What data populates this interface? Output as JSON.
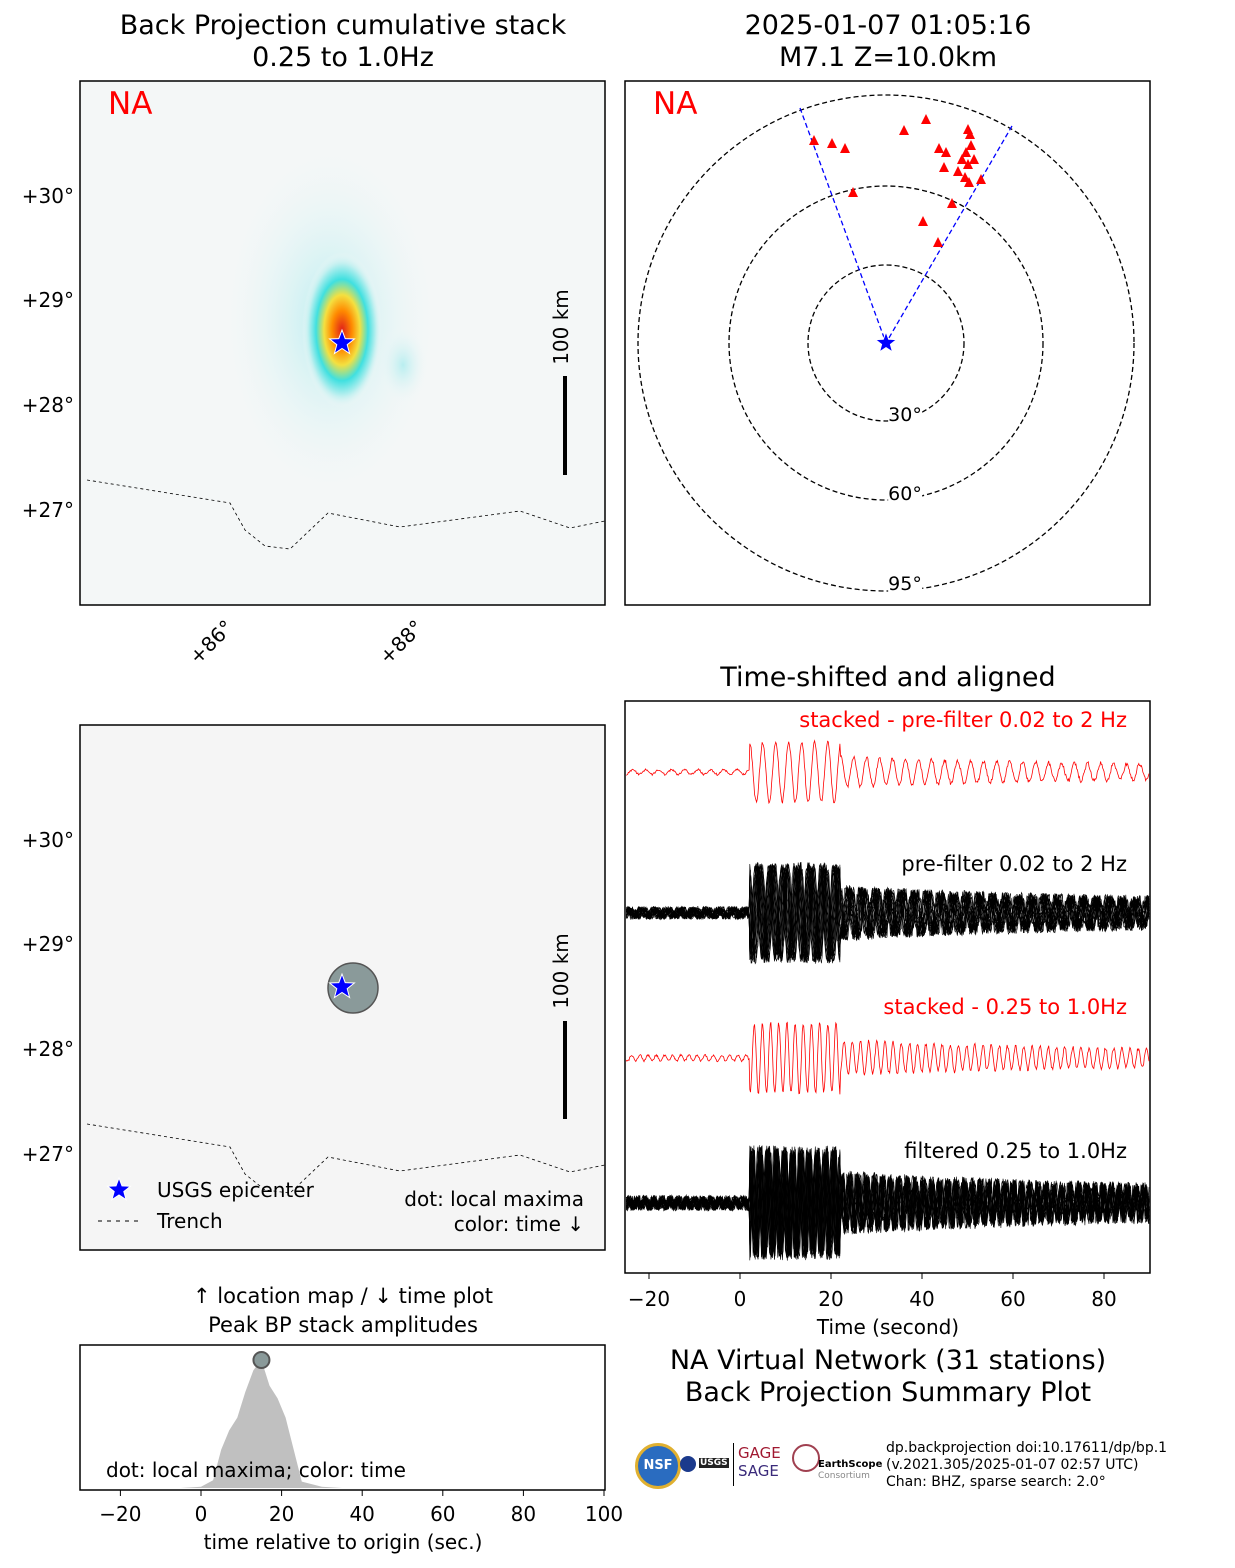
{
  "bp_map": {
    "title1": "Back Projection cumulative stack",
    "title2": "0.25 to 1.0Hz",
    "network": "NA",
    "lat_ticks": [
      "+30°",
      "+29°",
      "+28°",
      "+27°"
    ],
    "lon_ticks": [
      "+86°",
      "+88°"
    ],
    "scale": "100 km"
  },
  "event_map": {
    "title1": "2025-01-07 01:05:16",
    "title2": "M7.1 Z=10.0km",
    "network": "NA",
    "rings": [
      "30°",
      "60°",
      "95°"
    ]
  },
  "loc_map": {
    "lat_ticks": [
      "+30°",
      "+29°",
      "+28°",
      "+27°"
    ],
    "scale": "100 km",
    "legend_epicenter": "USGS epicenter",
    "legend_trench": "Trench",
    "note1": "dot: local maxima",
    "note2": "color: time ↓"
  },
  "amp_plot": {
    "title1": "↑ location map / ↓ time plot",
    "title2": "Peak BP stack amplitudes",
    "note": "dot: local maxima; color: time",
    "xlabel": "time relative to origin (sec.)",
    "xticks": [
      "−20",
      "0",
      "20",
      "40",
      "60",
      "80",
      "100"
    ]
  },
  "waveforms": {
    "title": "Time-shifted and aligned",
    "labels": [
      "stacked - pre-filter 0.02 to 2 Hz",
      "pre-filter 0.02 to 2 Hz",
      "stacked - 0.25 to 1.0Hz",
      "filtered 0.25 to 1.0Hz"
    ],
    "xticks": [
      "−20",
      "0",
      "20",
      "40",
      "60",
      "80"
    ],
    "xlabel": "Time (second)"
  },
  "summary": {
    "line1": "NA Virtual Network (31 stations)",
    "line2": "Back Projection Summary Plot"
  },
  "footer": {
    "l1": "dp.backprojection doi:10.17611/dp/bp.1",
    "l2": "(v.2021.305/2025-01-07 02:57 UTC)",
    "l3": "Chan: BHZ, sparse search: 2.0°",
    "logo_gage": "GAGE",
    "logo_sage": "SAGE",
    "logo_es": "EarthScope",
    "logo_cons": "Consortium",
    "logo_nsf": "NSF",
    "logo_usgs": "USGS"
  },
  "chart_data": {
    "type": "area",
    "title": "Peak BP stack amplitudes",
    "xlabel": "time relative to origin (sec.)",
    "xlim": [
      -30,
      100
    ],
    "x": [
      -30,
      -5,
      0,
      3,
      5,
      7,
      9,
      11,
      13,
      15,
      17,
      19,
      21,
      23,
      25,
      30,
      35,
      100
    ],
    "y": [
      0,
      0,
      0.01,
      0.06,
      0.3,
      0.45,
      0.55,
      0.75,
      0.92,
      1.0,
      0.8,
      0.7,
      0.55,
      0.3,
      0.05,
      0.01,
      0,
      0
    ],
    "local_maxima": [
      {
        "t": 15,
        "amp": 1.0
      }
    ],
    "epicenter": {
      "lat": 28.6,
      "lon": 87.45
    },
    "colors": {
      "stack": "#ff0000",
      "traces": "#000000",
      "epicenter": "#0000ff",
      "area": "#c0c0c0"
    }
  }
}
